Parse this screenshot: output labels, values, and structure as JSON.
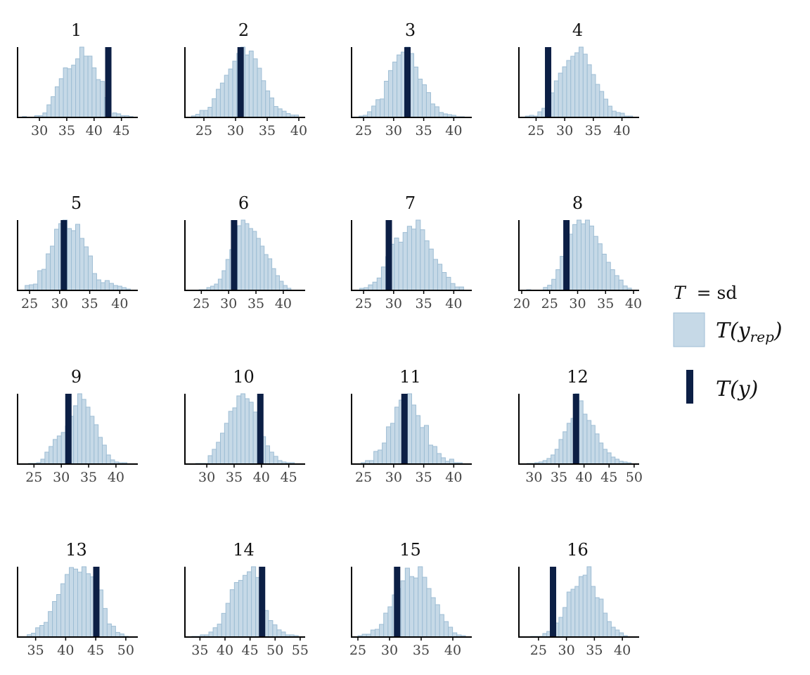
{
  "chart_data": {
    "type": "histogram",
    "layout": "4x4 facet grid",
    "statistic": "sd",
    "colors": {
      "rep_fill": "#c6d9e7",
      "rep_stroke": "#9dbdd4",
      "observed": "#0c1f45",
      "axis": "#000000"
    },
    "legend": {
      "title_T": "T",
      "title_eq": "= sd",
      "rep_label_main": "T(y",
      "rep_label_sub": "rep",
      "rep_label_close": ")",
      "obs_label": "T(y)",
      "position": "right"
    },
    "panels": [
      {
        "label": "1",
        "xlim": [
          26,
          48
        ],
        "ticks": [
          30,
          35,
          40,
          45
        ],
        "observed": 42.6,
        "binwidth": 0.75,
        "counts": [
          1,
          0,
          0,
          2,
          2,
          5,
          14,
          23,
          34,
          43,
          55,
          54,
          58,
          65,
          78,
          68,
          68,
          55,
          42,
          40,
          22,
          0,
          5,
          4,
          2,
          2,
          1
        ]
      },
      {
        "label": "2",
        "xlim": [
          22,
          41
        ],
        "ticks": [
          25,
          30,
          35,
          40
        ],
        "observed": 30.8,
        "binwidth": 0.65,
        "counts": [
          2,
          4,
          9,
          9,
          13,
          24,
          36,
          44,
          54,
          62,
          72,
          82,
          90,
          80,
          85,
          75,
          63,
          47,
          34,
          25,
          14,
          11,
          8,
          5,
          3,
          3
        ]
      },
      {
        "label": "3",
        "xlim": [
          23,
          43
        ],
        "ticks": [
          25,
          30,
          35,
          40
        ],
        "observed": 32.3,
        "binwidth": 0.7,
        "counts": [
          2,
          3,
          8,
          16,
          25,
          26,
          51,
          66,
          78,
          88,
          92,
          99,
          90,
          71,
          54,
          46,
          35,
          19,
          15,
          7,
          5,
          4,
          3,
          1,
          1
        ]
      },
      {
        "label": "4",
        "xlim": [
          22,
          43
        ],
        "ticks": [
          25,
          30,
          35,
          40
        ],
        "observed": 27.1,
        "binwidth": 0.72,
        "counts": [
          2,
          3,
          2,
          8,
          13,
          24,
          35,
          52,
          63,
          72,
          81,
          87,
          92,
          100,
          90,
          75,
          61,
          47,
          37,
          26,
          16,
          9,
          7,
          6,
          2,
          2
        ]
      },
      {
        "label": "5",
        "xlim": [
          23,
          43
        ],
        "ticks": [
          25,
          30,
          35,
          40
        ],
        "observed": 30.7,
        "binwidth": 0.7,
        "counts": [
          7,
          8,
          9,
          28,
          30,
          52,
          63,
          87,
          95,
          100,
          88,
          85,
          94,
          74,
          62,
          49,
          24,
          15,
          11,
          14,
          10,
          7,
          6,
          4,
          2
        ]
      },
      {
        "label": "6",
        "xlim": [
          22,
          44
        ],
        "ticks": [
          25,
          30,
          35,
          40
        ],
        "observed": 31.0,
        "binwidth": 0.7,
        "counts": [
          1,
          1,
          4,
          6,
          9,
          16,
          28,
          44,
          58,
          74,
          92,
          100,
          95,
          88,
          84,
          74,
          63,
          51,
          45,
          31,
          21,
          13,
          7,
          3
        ]
      },
      {
        "label": "7",
        "xlim": [
          23,
          43
        ],
        "ticks": [
          25,
          30,
          35,
          40
        ],
        "observed": 29.2,
        "binwidth": 0.72,
        "counts": [
          3,
          4,
          8,
          12,
          18,
          34,
          49,
          67,
          76,
          70,
          84,
          93,
          89,
          102,
          88,
          72,
          60,
          45,
          38,
          26,
          19,
          10,
          5,
          5
        ]
      },
      {
        "label": "8",
        "xlim": [
          19.5,
          41
        ],
        "ticks": [
          20,
          25,
          30,
          35,
          40
        ],
        "observed": 28.0,
        "binwidth": 0.75,
        "counts": [
          1,
          0,
          0,
          0,
          4,
          7,
          15,
          28,
          46,
          65,
          76,
          89,
          95,
          90,
          95,
          87,
          73,
          63,
          49,
          38,
          28,
          20,
          14,
          6,
          3
        ]
      },
      {
        "label": "9",
        "xlim": [
          22,
          44
        ],
        "ticks": [
          25,
          30,
          35,
          40
        ],
        "observed": 31.3,
        "binwidth": 0.75,
        "counts": [
          1,
          1,
          2,
          7,
          17,
          25,
          35,
          40,
          45,
          54,
          68,
          83,
          100,
          92,
          81,
          68,
          56,
          38,
          27,
          13,
          6,
          3,
          2,
          2
        ]
      },
      {
        "label": "10",
        "xlim": [
          26,
          48
        ],
        "ticks": [
          30,
          35,
          40,
          45
        ],
        "observed": 39.8,
        "binwidth": 0.75,
        "counts": [
          1,
          1,
          1,
          12,
          21,
          31,
          44,
          58,
          75,
          80,
          97,
          100,
          93,
          88,
          74,
          57,
          39,
          26,
          17,
          11,
          5,
          3,
          2,
          2
        ]
      },
      {
        "label": "11",
        "xlim": [
          23,
          43
        ],
        "ticks": [
          25,
          30,
          35,
          40
        ],
        "observed": 31.8,
        "binwidth": 0.7,
        "counts": [
          2,
          5,
          5,
          18,
          20,
          30,
          53,
          58,
          81,
          91,
          95,
          100,
          84,
          69,
          52,
          55,
          27,
          25,
          15,
          9,
          4,
          7,
          2,
          2
        ]
      },
      {
        "label": "12",
        "xlim": [
          27,
          51
        ],
        "ticks": [
          30,
          35,
          40,
          45,
          50
        ],
        "observed": 38.4,
        "binwidth": 0.8,
        "counts": [
          1,
          1,
          2,
          3,
          5,
          8,
          13,
          21,
          35,
          46,
          58,
          65,
          100,
          90,
          71,
          62,
          55,
          43,
          30,
          21,
          16,
          10,
          7,
          4,
          3,
          2
        ]
      },
      {
        "label": "13",
        "xlim": [
          32,
          52
        ],
        "ticks": [
          35,
          40,
          45,
          50
        ],
        "observed": 45.1,
        "binwidth": 0.7,
        "counts": [
          3,
          5,
          12,
          15,
          19,
          33,
          46,
          55,
          69,
          81,
          90,
          88,
          84,
          91,
          82,
          78,
          66,
          61,
          37,
          17,
          14,
          6,
          4,
          1
        ]
      },
      {
        "label": "14",
        "xlim": [
          32,
          56
        ],
        "ticks": [
          35,
          40,
          45,
          50,
          55
        ],
        "observed": 47.4,
        "binwidth": 0.85,
        "counts": [
          1,
          1,
          3,
          3,
          7,
          13,
          18,
          33,
          47,
          66,
          76,
          79,
          86,
          91,
          98,
          83,
          53,
          37,
          23,
          17,
          10,
          7,
          3,
          3,
          2
        ]
      },
      {
        "label": "15",
        "xlim": [
          24,
          43
        ],
        "ticks": [
          25,
          30,
          35,
          40
        ],
        "observed": 31.2,
        "binwidth": 0.68,
        "counts": [
          2,
          4,
          4,
          10,
          11,
          18,
          34,
          43,
          60,
          69,
          80,
          98,
          86,
          84,
          100,
          85,
          69,
          56,
          46,
          32,
          22,
          14,
          6,
          3,
          2
        ]
      },
      {
        "label": "16",
        "xlim": [
          21.5,
          43
        ],
        "ticks": [
          25,
          30,
          35,
          40
        ],
        "observed": 27.6,
        "binwidth": 0.72,
        "counts": [
          1,
          1,
          1,
          5,
          8,
          14,
          20,
          28,
          42,
          64,
          68,
          72,
          86,
          88,
          100,
          72,
          56,
          54,
          34,
          22,
          14,
          10,
          6,
          2
        ]
      }
    ]
  }
}
